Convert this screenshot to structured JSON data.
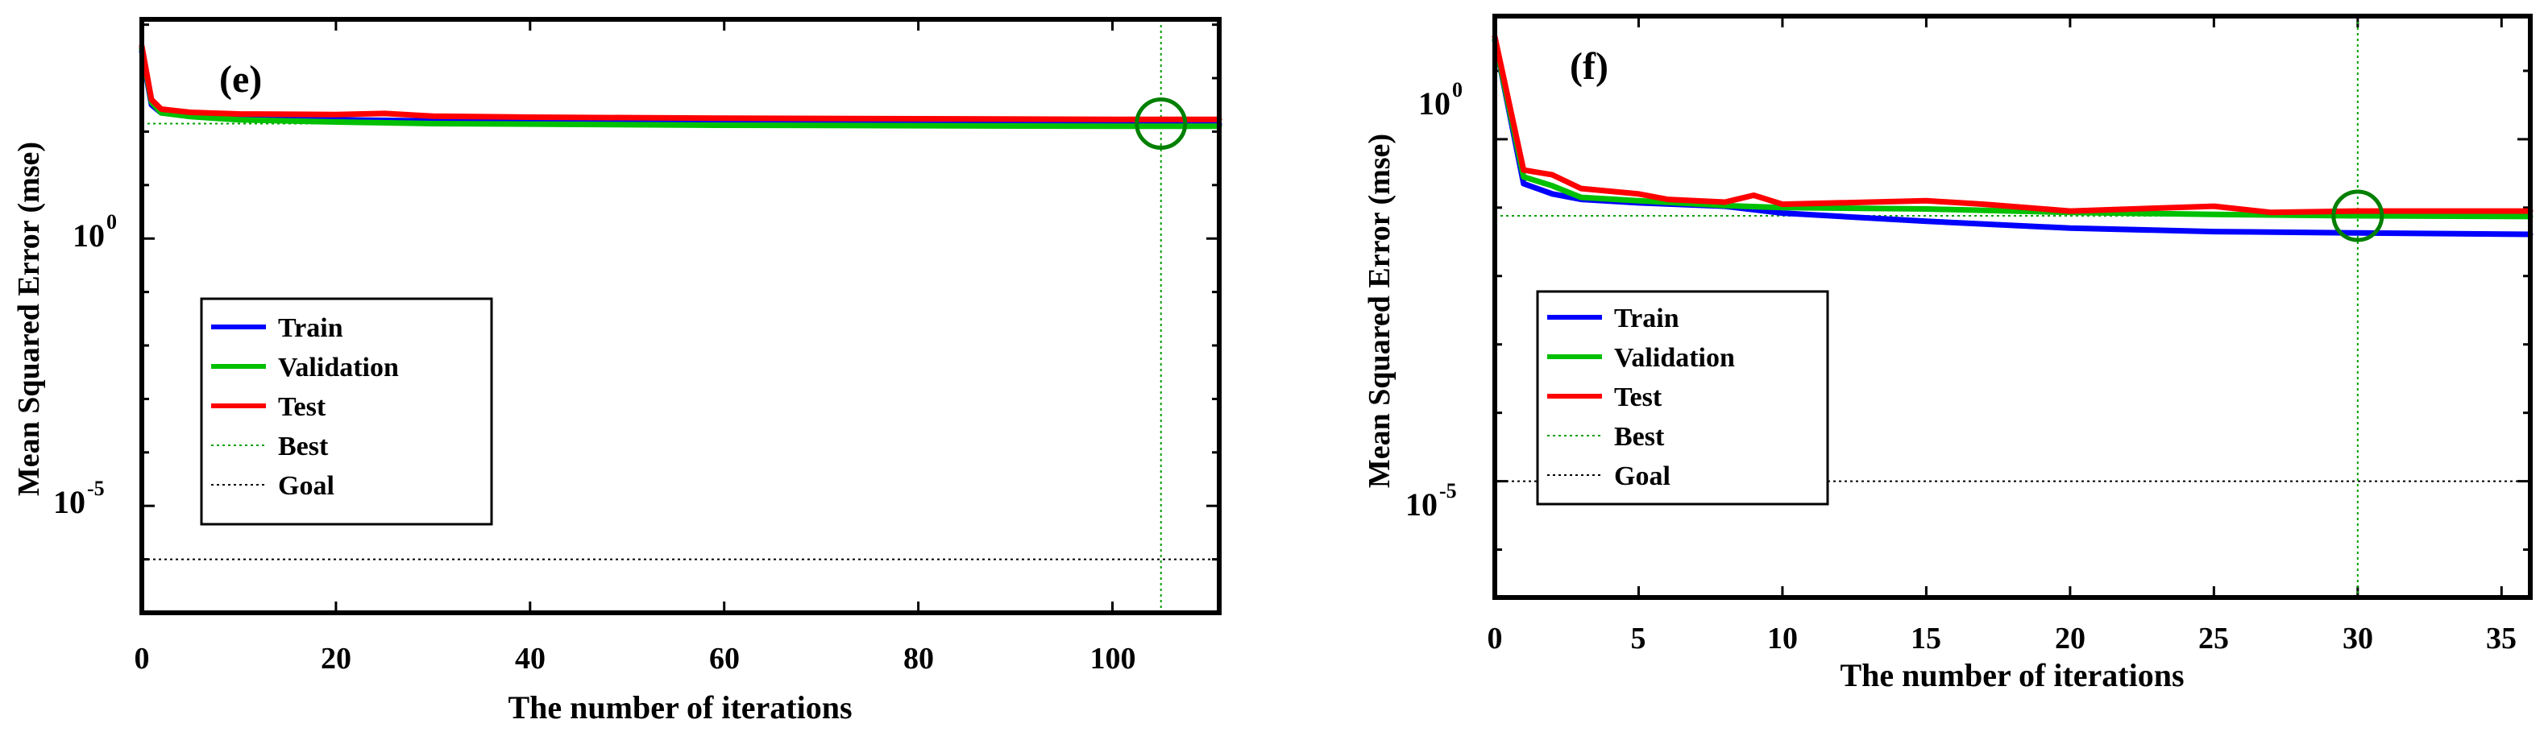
{
  "figure": {
    "panels": [
      {
        "panel_label": "(e)",
        "xlabel": "The number of iterations",
        "ylabel": "Mean Squared Error  (mse)",
        "x_ticks": [
          "0",
          "20",
          "40",
          "60",
          "80",
          "100"
        ],
        "y_tick_bases": [
          "10",
          "10"
        ],
        "y_tick_exps": [
          "0",
          "-5"
        ],
        "legend": [
          "Train",
          "Validation",
          "Test",
          "Best",
          "Goal"
        ]
      },
      {
        "panel_label": "(f)",
        "xlabel": "The number of iterations",
        "ylabel": "Mean Squared Error  (mse)",
        "x_ticks": [
          "0",
          "5",
          "10",
          "15",
          "20",
          "25",
          "30",
          "35"
        ],
        "y_tick_bases": [
          "10",
          "10"
        ],
        "y_tick_exps": [
          "0",
          "-5"
        ],
        "legend": [
          "Train",
          "Validation",
          "Test",
          "Best",
          "Goal"
        ]
      }
    ]
  },
  "chart_data": [
    {
      "type": "line",
      "title": "(e)",
      "xlabel": "The number of iterations",
      "ylabel": "Mean Squared Error  (mse)",
      "xscale": "linear",
      "yscale": "log",
      "xlim": [
        0,
        111
      ],
      "ylim_log10": [
        -7,
        4.1
      ],
      "x_ticks": [
        0,
        20,
        40,
        60,
        80,
        100
      ],
      "y_ticks_log10": [
        0,
        -5
      ],
      "legend_position": "lower-left",
      "colors": {
        "Train": "#0000ff",
        "Validation": "#00c000",
        "Test": "#ff0000",
        "Best": "#00a000",
        "Goal": "#000000",
        "marker": "#008000"
      },
      "series": [
        {
          "name": "Train",
          "style": "solid",
          "x": [
            0,
            1,
            2,
            5,
            10,
            20,
            30,
            40,
            60,
            80,
            100,
            111
          ],
          "log10_y": [
            3.5,
            2.5,
            2.35,
            2.3,
            2.25,
            2.22,
            2.2,
            2.18,
            2.16,
            2.15,
            2.14,
            2.14
          ]
        },
        {
          "name": "Validation",
          "style": "solid",
          "x": [
            0,
            1,
            2,
            5,
            10,
            20,
            30,
            40,
            60,
            80,
            100,
            111
          ],
          "log10_y": [
            3.55,
            2.55,
            2.35,
            2.28,
            2.22,
            2.18,
            2.15,
            2.14,
            2.12,
            2.11,
            2.1,
            2.1
          ]
        },
        {
          "name": "Test",
          "style": "solid",
          "x": [
            0,
            1,
            2,
            5,
            10,
            20,
            25,
            30,
            40,
            60,
            80,
            100,
            111
          ],
          "log10_y": [
            3.6,
            2.6,
            2.42,
            2.36,
            2.33,
            2.32,
            2.34,
            2.29,
            2.27,
            2.25,
            2.24,
            2.23,
            2.23
          ]
        }
      ],
      "best": {
        "x": 105,
        "log10_y": 2.15
      },
      "goal": {
        "log10_y": -6
      }
    },
    {
      "type": "line",
      "title": "(f)",
      "xlabel": "The number of iterations",
      "ylabel": "Mean Squared Error  (mse)",
      "xscale": "linear",
      "yscale": "log",
      "xlim": [
        0,
        36
      ],
      "ylim_log10": [
        -6.7,
        1.8
      ],
      "x_ticks": [
        0,
        5,
        10,
        15,
        20,
        25,
        30,
        35
      ],
      "y_ticks_log10": [
        0,
        -5
      ],
      "legend_position": "lower-left",
      "colors": {
        "Train": "#0000ff",
        "Validation": "#00c000",
        "Test": "#ff0000",
        "Best": "#00a000",
        "Goal": "#000000",
        "marker": "#008000"
      },
      "series": [
        {
          "name": "Train",
          "style": "solid",
          "x": [
            0,
            1,
            2,
            3,
            5,
            8,
            10,
            15,
            20,
            25,
            30,
            36
          ],
          "log10_y": [
            1.45,
            -0.65,
            -0.8,
            -0.88,
            -0.93,
            -0.98,
            -1.08,
            -1.2,
            -1.3,
            -1.35,
            -1.37,
            -1.39
          ]
        },
        {
          "name": "Validation",
          "style": "solid",
          "x": [
            0,
            1,
            2,
            3,
            5,
            8,
            10,
            15,
            20,
            25,
            30,
            36
          ],
          "log10_y": [
            1.45,
            -0.55,
            -0.68,
            -0.85,
            -0.9,
            -0.97,
            -1.0,
            -1.02,
            -1.07,
            -1.1,
            -1.12,
            -1.13
          ]
        },
        {
          "name": "Test",
          "style": "solid",
          "x": [
            0,
            1,
            2,
            3,
            5,
            6,
            8,
            9,
            10,
            15,
            17,
            20,
            25,
            27,
            30,
            36
          ],
          "log10_y": [
            1.5,
            -0.45,
            -0.52,
            -0.72,
            -0.8,
            -0.88,
            -0.92,
            -0.82,
            -0.95,
            -0.9,
            -0.95,
            -1.05,
            -0.98,
            -1.07,
            -1.05,
            -1.05
          ]
        }
      ],
      "best": {
        "x": 30,
        "log10_y": -1.12
      },
      "goal": {
        "log10_y": -5
      }
    }
  ]
}
